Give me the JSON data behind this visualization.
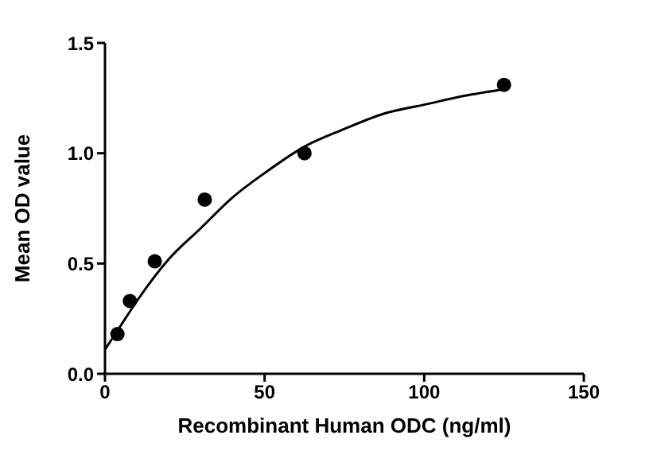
{
  "chart_data": {
    "type": "scatter",
    "xlabel": "Recombinant Human ODC (ng/ml)",
    "ylabel": "Mean OD value",
    "xlim": [
      0,
      150
    ],
    "xticks": [
      0,
      50,
      100,
      150
    ],
    "ylim": [
      0,
      1.5
    ],
    "yticks": [
      {
        "value": 0,
        "label": "0.0"
      },
      {
        "value": 0.5,
        "label": "0.5"
      },
      {
        "value": 1,
        "label": "1.0"
      },
      {
        "value": 1.5,
        "label": "1.5"
      }
    ],
    "grid": false,
    "legend": false,
    "marker": "circle",
    "series": [
      {
        "type": "scatter",
        "color": "#000000",
        "x": [
          3.9,
          7.8,
          15.6,
          31.25,
          62.5,
          125
        ],
        "values": [
          0.18,
          0.33,
          0.51,
          0.79,
          1.0,
          1.31
        ]
      },
      {
        "type": "line",
        "color": "#000000",
        "line_style": "solid",
        "marker": "none",
        "x": [
          0,
          5,
          10,
          20,
          30,
          40,
          50,
          62.5,
          75,
          87.5,
          100,
          112.5,
          125
        ],
        "values": [
          0.11,
          0.22,
          0.33,
          0.52,
          0.66,
          0.8,
          0.91,
          1.03,
          1.11,
          1.18,
          1.22,
          1.26,
          1.29
        ]
      }
    ]
  }
}
